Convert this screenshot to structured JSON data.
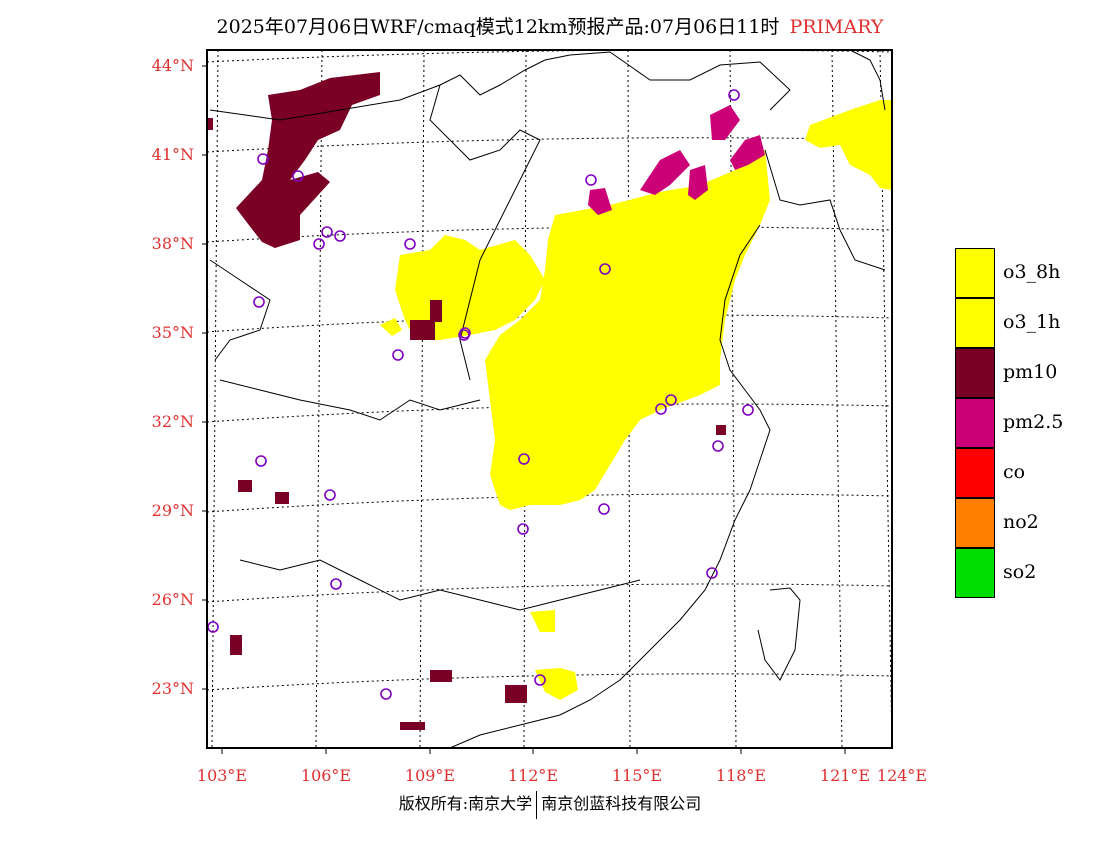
{
  "header": {
    "title": "2025年07月06日WRF/cmaq模式12km预报产品:07月06日11时",
    "tag": "PRIMARY"
  },
  "map": {
    "lat_labels": [
      "44°N",
      "41°N",
      "38°N",
      "35°N",
      "32°N",
      "29°N",
      "26°N",
      "23°N"
    ],
    "lon_labels": [
      "103°E",
      "106°E",
      "109°E",
      "112°E",
      "115°E",
      "118°E",
      "121°E",
      "124°E"
    ],
    "colors": {
      "o3_8h": "#ffff00",
      "o3_1h": "#ffff00",
      "pm10": "#800020",
      "pm25": "#cc0077",
      "station": "#8000c0",
      "grid": "#000000"
    }
  },
  "legend": {
    "items": [
      {
        "label": "o3_8h",
        "color": "#ffff00"
      },
      {
        "label": "o3_1h",
        "color": "#ffff00"
      },
      {
        "label": "pm10",
        "color": "#7a0026"
      },
      {
        "label": "pm2.5",
        "color": "#cc0077"
      },
      {
        "label": "co",
        "color": "#ff0000"
      },
      {
        "label": "no2",
        "color": "#ff7f00"
      },
      {
        "label": "so2",
        "color": "#00dd00"
      }
    ]
  },
  "footer": {
    "left": "版权所有:南京大学",
    "right": "南京创蓝科技有限公司"
  }
}
